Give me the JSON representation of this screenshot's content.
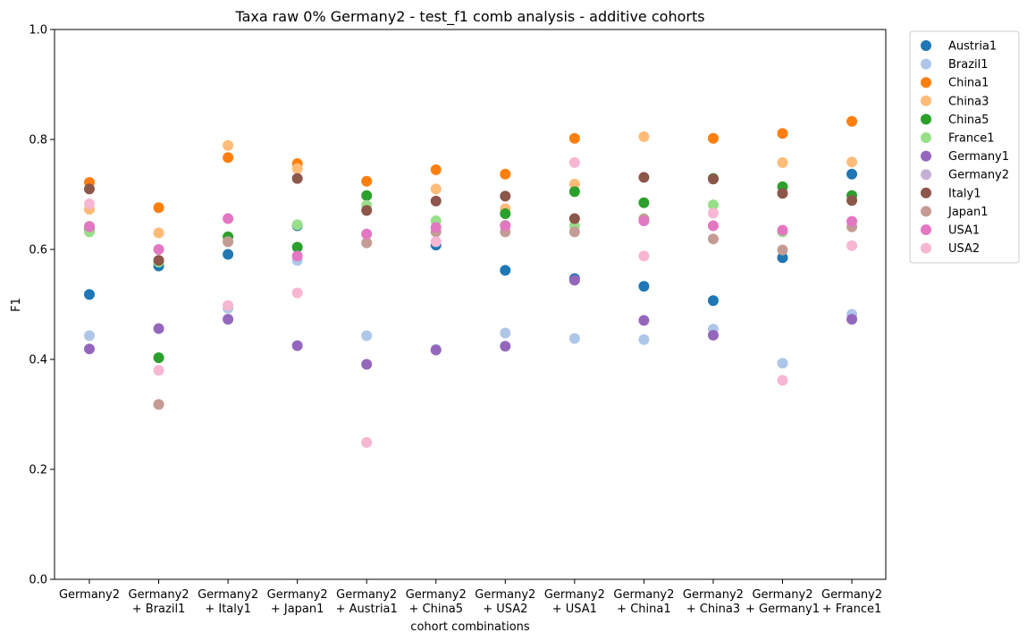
{
  "chart_data": {
    "type": "scatter",
    "title": "Taxa raw 0% Germany2 - test_f1 comb analysis - additive cohorts",
    "xlabel": "cohort combinations",
    "ylabel": "F1",
    "ylim": [
      0,
      1
    ],
    "yticks": [
      "0.0",
      "0.2",
      "0.4",
      "0.6",
      "0.8",
      "1.0"
    ],
    "grid": false,
    "legend_position": "outside-top-right",
    "categories": [
      [
        "Germany2"
      ],
      [
        "Germany2",
        "+ Brazil1"
      ],
      [
        "Germany2",
        "+ Italy1"
      ],
      [
        "Germany2",
        "+ Japan1"
      ],
      [
        "Germany2",
        "+ Austria1"
      ],
      [
        "Germany2",
        "+ China5"
      ],
      [
        "Germany2",
        "+ USA2"
      ],
      [
        "Germany2",
        "+ USA1"
      ],
      [
        "Germany2",
        "+ China1"
      ],
      [
        "Germany2",
        "+ China3"
      ],
      [
        "Germany2",
        "+ Germany1"
      ],
      [
        "Germany2",
        "+ France1"
      ]
    ],
    "series": [
      {
        "name": "Austria1",
        "color": "#1f77b4",
        "values": [
          0.518,
          0.57,
          0.591,
          0.643,
          null,
          0.608,
          0.562,
          0.547,
          0.533,
          0.507,
          0.585,
          0.737
        ]
      },
      {
        "name": "Brazil1",
        "color": "#aec7e8",
        "values": [
          0.443,
          null,
          0.493,
          0.58,
          0.443,
          0.418,
          0.448,
          0.438,
          0.436,
          0.455,
          0.393,
          0.482
        ]
      },
      {
        "name": "China1",
        "color": "#ff7f0e",
        "values": [
          0.722,
          0.676,
          0.767,
          0.756,
          0.724,
          0.745,
          0.737,
          0.802,
          null,
          0.802,
          0.811,
          0.833
        ]
      },
      {
        "name": "China3",
        "color": "#ffbb78",
        "values": [
          0.673,
          0.63,
          0.789,
          0.747,
          0.671,
          0.71,
          0.674,
          0.719,
          0.805,
          null,
          0.758,
          0.759
        ]
      },
      {
        "name": "China5",
        "color": "#2ca02c",
        "values": [
          0.636,
          0.403,
          0.623,
          0.604,
          0.698,
          null,
          0.665,
          0.705,
          0.685,
          0.729,
          0.714,
          0.698
        ]
      },
      {
        "name": "France1",
        "color": "#98df8a",
        "values": [
          0.632,
          0.577,
          0.614,
          0.645,
          0.68,
          0.652,
          0.644,
          0.643,
          0.656,
          0.681,
          0.632,
          null
        ]
      },
      {
        "name": "Germany1",
        "color": "#9467bd",
        "values": [
          0.419,
          0.456,
          0.473,
          0.425,
          0.391,
          0.417,
          0.424,
          0.544,
          0.471,
          0.444,
          null,
          0.473
        ]
      },
      {
        "name": "Germany2",
        "color": "#c5b0d5",
        "values": [
          null,
          null,
          null,
          null,
          null,
          null,
          null,
          null,
          null,
          null,
          null,
          null
        ]
      },
      {
        "name": "Italy1",
        "color": "#8c564b",
        "values": [
          0.71,
          0.58,
          null,
          0.729,
          0.671,
          0.688,
          0.697,
          0.656,
          0.731,
          0.728,
          0.702,
          0.689
        ]
      },
      {
        "name": "Japan1",
        "color": "#c49c94",
        "values": [
          0.642,
          0.318,
          0.614,
          null,
          0.612,
          0.632,
          0.632,
          0.632,
          0.655,
          0.619,
          0.599,
          0.641
        ]
      },
      {
        "name": "USA1",
        "color": "#e377c2",
        "values": [
          0.641,
          0.6,
          0.656,
          0.588,
          0.628,
          0.64,
          0.643,
          null,
          0.652,
          0.643,
          0.635,
          0.651
        ]
      },
      {
        "name": "USA2",
        "color": "#f7b6d2",
        "values": [
          0.683,
          0.38,
          0.498,
          0.521,
          0.249,
          0.614,
          null,
          0.758,
          0.588,
          0.666,
          0.362,
          0.607
        ]
      }
    ]
  }
}
